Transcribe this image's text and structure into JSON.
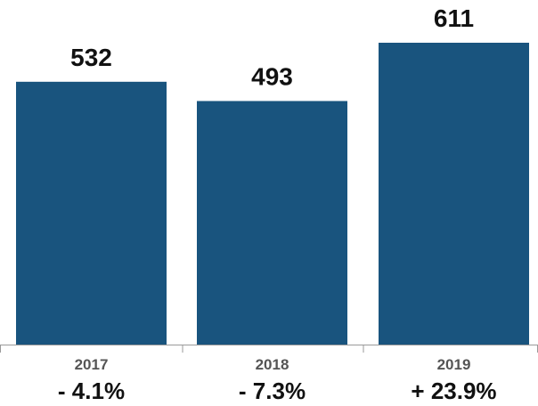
{
  "chart_data": {
    "type": "bar",
    "categories": [
      "2017",
      "2018",
      "2019"
    ],
    "values": [
      532,
      493,
      611
    ],
    "data_labels": [
      "532",
      "493",
      "611"
    ],
    "changes": [
      "- 4.1%",
      "- 7.3%",
      "+ 23.9%"
    ],
    "bar_color": "#19547e",
    "axis_color": "#9a9a9a",
    "ylim": [
      0,
      700
    ],
    "grid": false,
    "legend": "none"
  }
}
